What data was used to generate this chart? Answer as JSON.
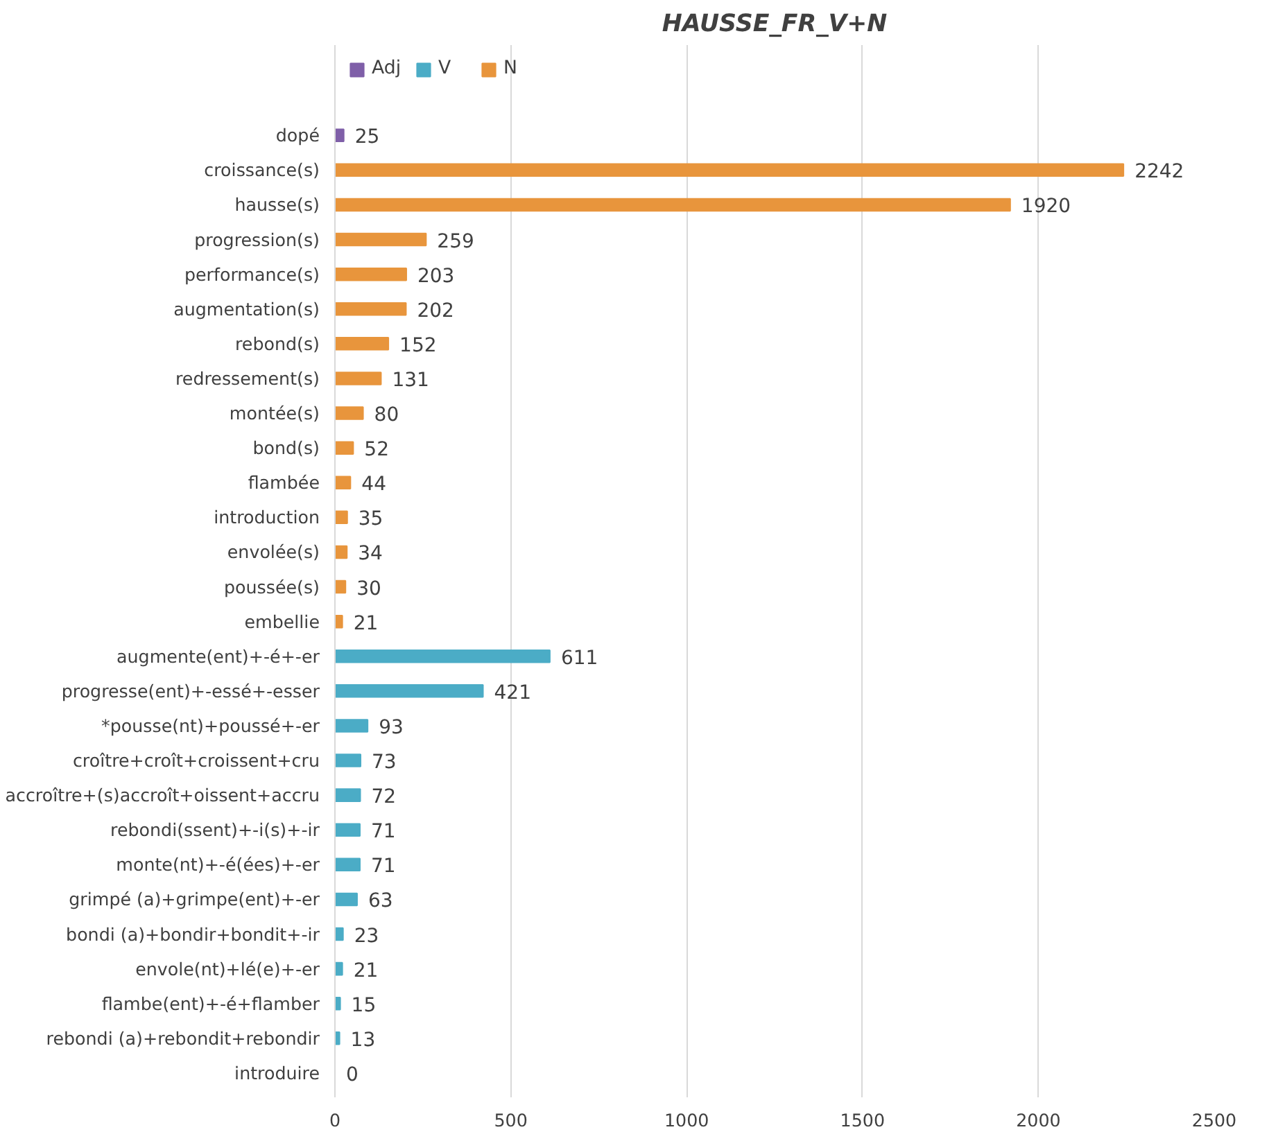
{
  "chart_data": {
    "type": "bar",
    "orientation": "horizontal",
    "title": "HAUSSE_FR_V+N",
    "categories": [
      "dopé",
      "croissance(s)",
      "hausse(s)",
      "progression(s)",
      "performance(s)",
      "augmentation(s)",
      "rebond(s)",
      "redressement(s)",
      "montée(s)",
      "bond(s)",
      "flambée",
      "introduction",
      "envolée(s)",
      "poussée(s)",
      "embellie",
      "augmente(ent)+-é+-er",
      "progresse(ent)+-essé+-esser",
      "*pousse(nt)+poussé+-er",
      "croître+croît+croissent+cru",
      "accroître+(s)accroît+oissent+accru",
      "rebondi(ssent)+-i(s)+-ir",
      "monte(nt)+-é(ées)+-er",
      "grimpé (a)+grimpe(ent)+-er",
      "bondi (a)+bondir+bondit+-ir",
      "envole(nt)+lé(e)+-er",
      "flambe(ent)+-é+flamber",
      "rebondi (a)+rebondit+rebondir",
      "introduire"
    ],
    "series": [
      {
        "name": "Adj",
        "color": "#7f5fa8",
        "values": [
          25,
          null,
          null,
          null,
          null,
          null,
          null,
          null,
          null,
          null,
          null,
          null,
          null,
          null,
          null,
          null,
          null,
          null,
          null,
          null,
          null,
          null,
          null,
          null,
          null,
          null,
          null,
          null
        ]
      },
      {
        "name": "V",
        "color": "#4bacc6",
        "values": [
          null,
          null,
          null,
          null,
          null,
          null,
          null,
          null,
          null,
          null,
          null,
          null,
          null,
          null,
          null,
          611,
          421,
          93,
          73,
          72,
          71,
          71,
          63,
          23,
          21,
          15,
          13,
          0
        ]
      },
      {
        "name": "N",
        "color": "#e8953c",
        "values": [
          null,
          2242,
          1920,
          259,
          203,
          202,
          152,
          131,
          80,
          52,
          44,
          35,
          34,
          30,
          21,
          null,
          null,
          null,
          null,
          null,
          null,
          null,
          null,
          null,
          null,
          null,
          null,
          null
        ]
      }
    ],
    "xlim": [
      0,
      2500
    ],
    "xticks": [
      0,
      500,
      1000,
      1500,
      2000,
      2500
    ],
    "grid": "x",
    "legend": "top left",
    "data_labels": true
  }
}
